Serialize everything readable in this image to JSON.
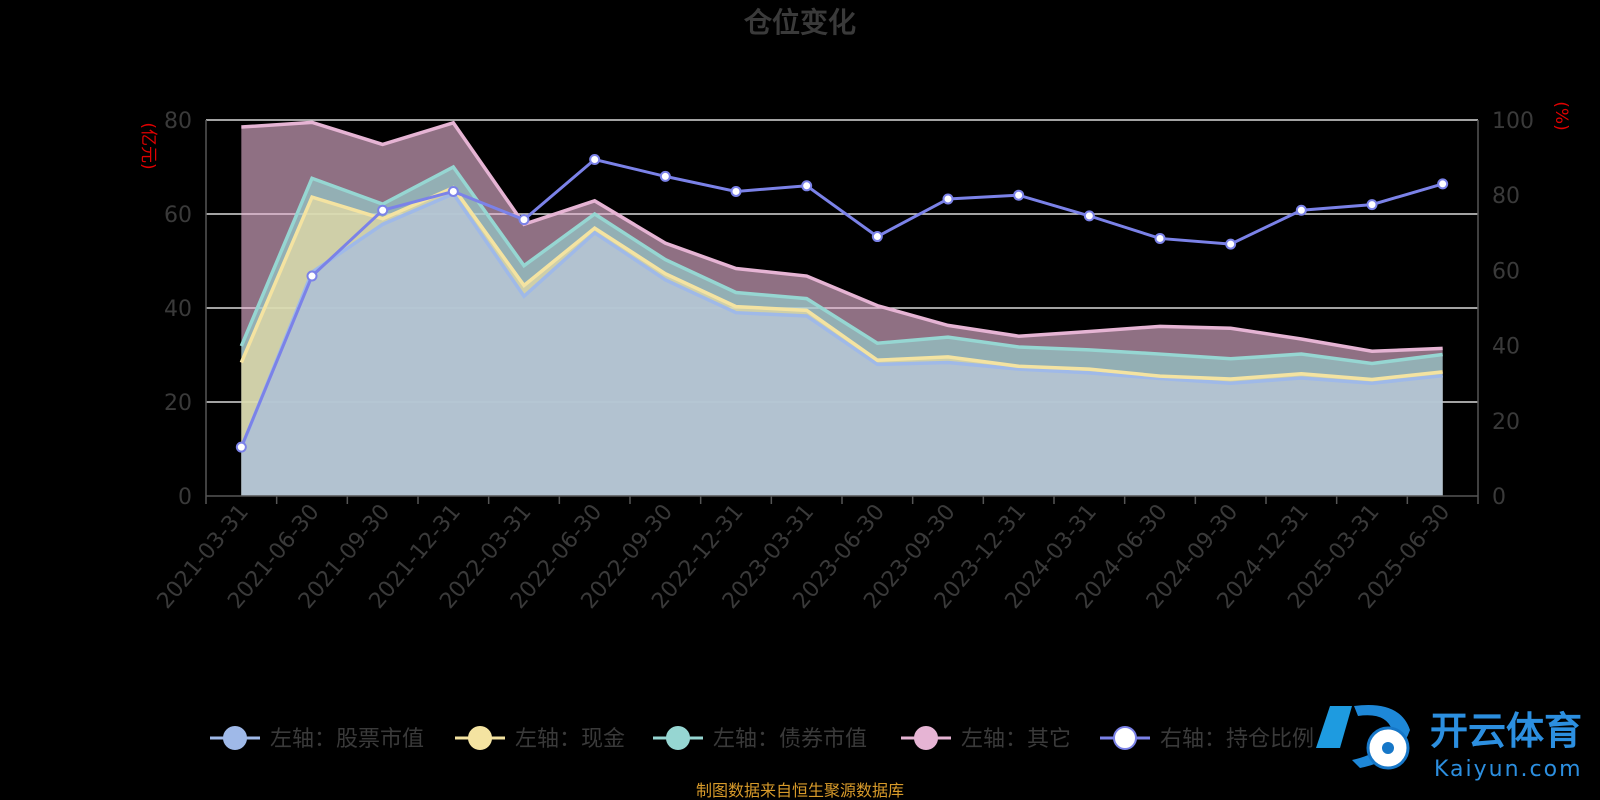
{
  "chart_data": {
    "type": "area",
    "title": "仓位变化",
    "left_axis": {
      "unit": "(亿元)",
      "ylim": [
        0,
        80
      ],
      "ticks": [
        "0",
        "20",
        "40",
        "60",
        "80"
      ]
    },
    "right_axis": {
      "unit": "(%)",
      "ylim": [
        0,
        100
      ],
      "ticks": [
        "0",
        "20",
        "40",
        "60",
        "80",
        "100"
      ]
    },
    "categories": [
      "2021-03-31",
      "2021-06-30",
      "2021-09-30",
      "2021-12-31",
      "2022-03-31",
      "2022-06-30",
      "2022-09-30",
      "2022-12-31",
      "2023-03-31",
      "2023-06-30",
      "2023-09-30",
      "2023-12-31",
      "2024-03-31",
      "2024-06-30",
      "2024-09-30",
      "2024-12-31",
      "2025-03-31",
      "2025-06-30"
    ],
    "stacked_series": [
      {
        "name": "左轴：股票市值",
        "axis": "left",
        "color": "#9fb9e8",
        "values": [
          10.2,
          47.6,
          57.8,
          64.3,
          42.5,
          56.0,
          46.0,
          39.0,
          38.3,
          28.0,
          28.4,
          27.0,
          26.2,
          25.0,
          24.0,
          25.1,
          24.0,
          25.6
        ]
      },
      {
        "name": "左轴：现金",
        "axis": "left",
        "color": "#f4e3a1",
        "values": [
          18.2,
          16.0,
          1.2,
          1.3,
          2.3,
          1.0,
          1.3,
          1.3,
          1.2,
          0.9,
          1.2,
          0.6,
          0.8,
          0.5,
          0.9,
          0.9,
          0.8,
          0.8
        ]
      },
      {
        "name": "左轴：债券市值",
        "axis": "left",
        "color": "#96d6d2",
        "values": [
          3.5,
          4.0,
          3.1,
          4.4,
          4.2,
          3.0,
          3.0,
          3.0,
          2.5,
          3.6,
          4.2,
          4.1,
          4.1,
          4.7,
          4.3,
          4.2,
          3.4,
          3.7
        ]
      },
      {
        "name": "左轴：其它",
        "axis": "left",
        "color": "#e6b4d4",
        "values": [
          46.6,
          11.9,
          12.7,
          9.4,
          8.8,
          2.8,
          3.5,
          5.1,
          4.8,
          8.0,
          2.5,
          2.3,
          3.9,
          5.9,
          6.5,
          3.2,
          2.6,
          1.3
        ]
      }
    ],
    "line_series": {
      "name": "右轴：持仓比例",
      "axis": "right",
      "color": "#7b82e8",
      "values": [
        13,
        58.5,
        76,
        81,
        73.5,
        89.5,
        85,
        81,
        82.5,
        69,
        79,
        80,
        74.5,
        68.5,
        67,
        76,
        77.5,
        83
      ]
    },
    "grid": true,
    "legend_position": "bottom",
    "source_note": "制图数据来自恒生聚源数据库",
    "watermark": {
      "text_cn": "开云体育",
      "text_en": "Kaiyun.com"
    }
  }
}
